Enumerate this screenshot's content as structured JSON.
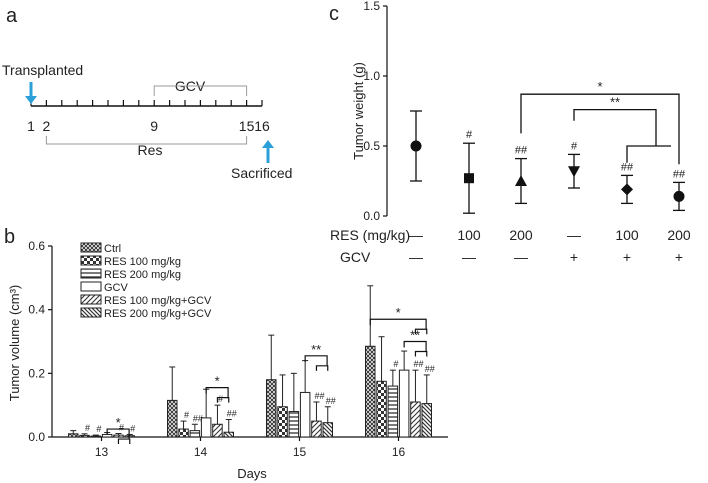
{
  "panel_labels": {
    "a": "a",
    "b": "b",
    "c": "c"
  },
  "timeline": {
    "transplanted_label": "Transplanted",
    "sacrificed_label": "Sacrificed",
    "gcv_label": "GCV",
    "res_label": "Res",
    "tick_labels": [
      "1",
      "2",
      "9",
      "15",
      "16"
    ],
    "arrow_color": "#2a9fd8",
    "day_start": 1,
    "day_end": 16,
    "gcv_range": [
      9,
      15
    ],
    "res_range": [
      2,
      15
    ]
  },
  "chart_data": [
    {
      "type": "bar",
      "ylabel": "Tumor volume (cm³)",
      "xlabel": "Days",
      "ylim": [
        0,
        0.6
      ],
      "yticks": [
        "0.0",
        "0.2",
        "0.4",
        "0.6"
      ],
      "categories": [
        "13",
        "14",
        "15",
        "16"
      ],
      "legend_position": "top-left",
      "series": [
        {
          "name": "Ctrl",
          "pattern": "cross",
          "values": [
            0.01,
            0.115,
            0.18,
            0.285
          ],
          "errors": [
            0.01,
            0.105,
            0.14,
            0.19
          ],
          "marks": [
            "",
            "",
            "",
            ""
          ]
        },
        {
          "name": "RES 100 mg/kg",
          "pattern": "checker",
          "values": [
            0.005,
            0.025,
            0.095,
            0.175
          ],
          "errors": [
            0.005,
            0.025,
            0.1,
            0.14
          ],
          "marks": [
            "#",
            "#",
            "",
            ""
          ]
        },
        {
          "name": "RES 200 mg/kg",
          "pattern": "hlines",
          "values": [
            0.003,
            0.02,
            0.08,
            0.16
          ],
          "errors": [
            0.003,
            0.02,
            0.12,
            0.05
          ],
          "marks": [
            "#",
            "##",
            "",
            "#"
          ]
        },
        {
          "name": "GCV",
          "pattern": "open",
          "values": [
            0.008,
            0.06,
            0.14,
            0.21
          ],
          "errors": [
            0.006,
            0.09,
            0.1,
            0.06
          ],
          "marks": [
            "",
            "",
            "",
            ""
          ]
        },
        {
          "name": "RES 100 mg/kg+GCV",
          "pattern": "diag",
          "values": [
            0.006,
            0.04,
            0.05,
            0.11
          ],
          "errors": [
            0.005,
            0.06,
            0.06,
            0.1
          ],
          "marks": [
            "#",
            "#",
            "##",
            "##"
          ]
        },
        {
          "name": "RES 200 mg/kg+GCV",
          "pattern": "diag2",
          "values": [
            0.004,
            0.015,
            0.045,
            0.105
          ],
          "errors": [
            0.004,
            0.04,
            0.05,
            0.09
          ],
          "marks": [
            "#",
            "##",
            "##",
            "##"
          ]
        }
      ],
      "significance": [
        {
          "category": "13",
          "label": "*"
        },
        {
          "category": "14",
          "label": "*"
        },
        {
          "category": "15",
          "label": "**"
        },
        {
          "category": "16",
          "label": "*"
        },
        {
          "category": "16",
          "label": "**"
        }
      ]
    },
    {
      "type": "scatter",
      "ylabel": "Tumor weight (g)",
      "ylim": [
        0,
        1.5
      ],
      "yticks": [
        "0.0",
        "0.5",
        "1.0",
        "1.5"
      ],
      "row_labels": [
        "RES (mg/kg)",
        "GCV"
      ],
      "groups": [
        {
          "res": "—",
          "gcv": "—",
          "marker": "circle",
          "mean": 0.5,
          "err": 0.25,
          "mark": ""
        },
        {
          "res": "100",
          "gcv": "—",
          "marker": "square",
          "mean": 0.27,
          "err": 0.25,
          "mark": "#"
        },
        {
          "res": "200",
          "gcv": "—",
          "marker": "triangle-up",
          "mean": 0.25,
          "err": 0.16,
          "mark": "##"
        },
        {
          "res": "—",
          "gcv": "+",
          "marker": "triangle-down",
          "mean": 0.32,
          "err": 0.12,
          "mark": "#"
        },
        {
          "res": "100",
          "gcv": "+",
          "marker": "diamond",
          "mean": 0.19,
          "err": 0.1,
          "mark": "##"
        },
        {
          "res": "200",
          "gcv": "+",
          "marker": "circle",
          "mean": 0.14,
          "err": 0.1,
          "mark": "##"
        }
      ],
      "significance": [
        {
          "from_group": 2,
          "to_group": 5,
          "label": "*"
        },
        {
          "from_group": 3,
          "to_group": 5,
          "label": "**"
        }
      ]
    }
  ]
}
